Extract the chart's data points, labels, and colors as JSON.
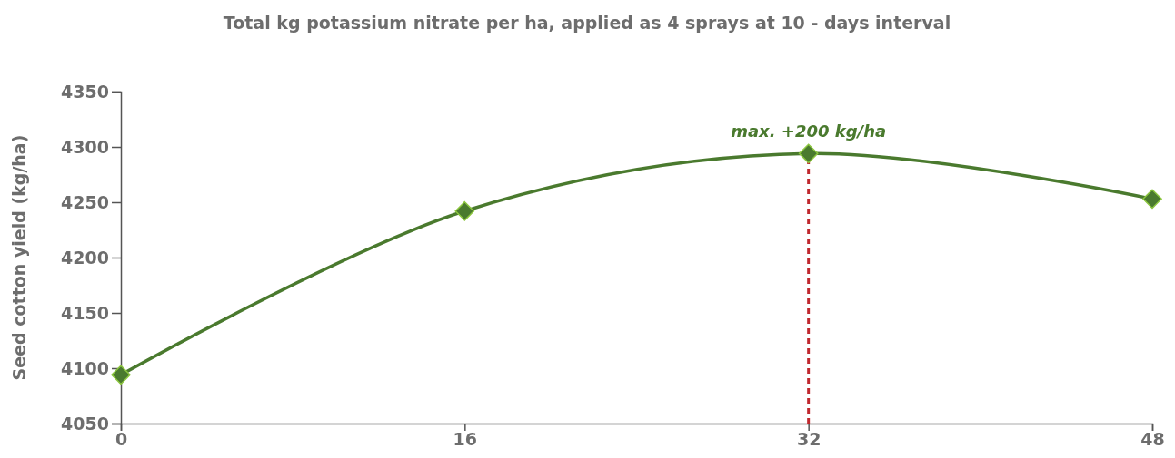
{
  "chart_data": {
    "type": "line",
    "title": "Total kg potassium nitrate per ha, applied as 4 sprays at 10 - days interval",
    "ylabel": "Seed cotton yield (kg/ha)",
    "x": [
      0,
      16,
      32,
      48
    ],
    "series": [
      {
        "color": "#4a7a2e",
        "values": [
          4094,
          4242,
          4294,
          4253
        ]
      }
    ],
    "xlim": [
      0,
      48
    ],
    "xticks": [
      0,
      16,
      32,
      48
    ],
    "ylim": [
      4050,
      4350
    ],
    "yticks": [
      4050,
      4100,
      4150,
      4200,
      4250,
      4300,
      4350
    ],
    "grid": false,
    "marker": "diamond",
    "line_style": "solid",
    "ref_lines": [
      {
        "axis": "x",
        "value": 32,
        "color": "#c0282e",
        "line_style": "dashed"
      }
    ],
    "annotations": [
      {
        "text": "max. +200 kg/ha",
        "x": 32,
        "y": 4294
      }
    ]
  }
}
